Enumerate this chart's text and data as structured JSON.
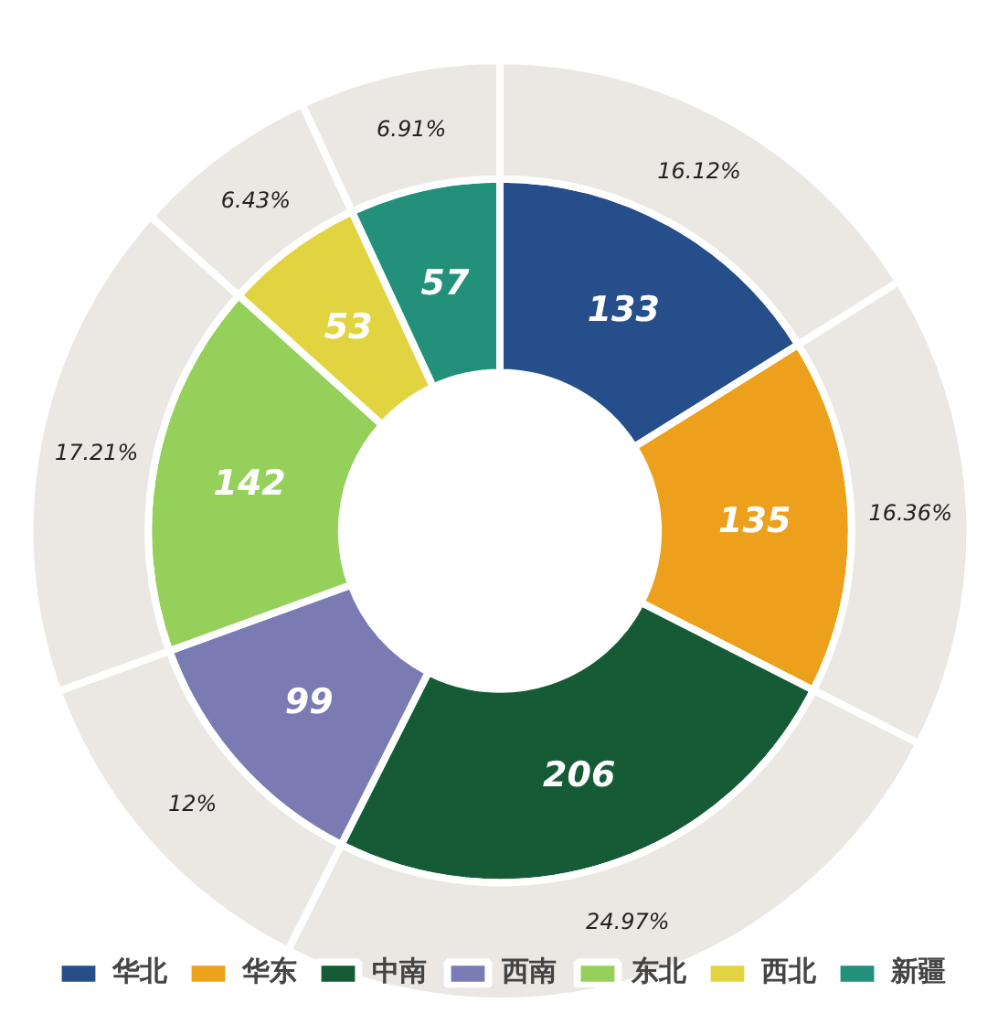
{
  "chart_data": {
    "type": "donut",
    "categories": [
      "华北",
      "华东",
      "中南",
      "西南",
      "东北",
      "西北",
      "新疆"
    ],
    "series": [
      {
        "values": [
          133,
          135,
          206,
          99,
          142,
          53,
          57
        ],
        "colors": [
          "#254e8a",
          "#eda01b",
          "#155c36",
          "#7a7bb3",
          "#95d05a",
          "#e2d440",
          "#22907a"
        ],
        "data_labels": true
      },
      {
        "color": "#ebe8e3",
        "values": [
          16.12,
          16.36,
          24.97,
          12,
          17.21,
          6.43,
          6.91
        ],
        "value_labels": [
          "16.12%",
          "16.36%",
          "24.97%",
          "12%",
          "17.21%",
          "6.43%",
          "6.91%"
        ]
      }
    ],
    "legend": "bottom"
  }
}
